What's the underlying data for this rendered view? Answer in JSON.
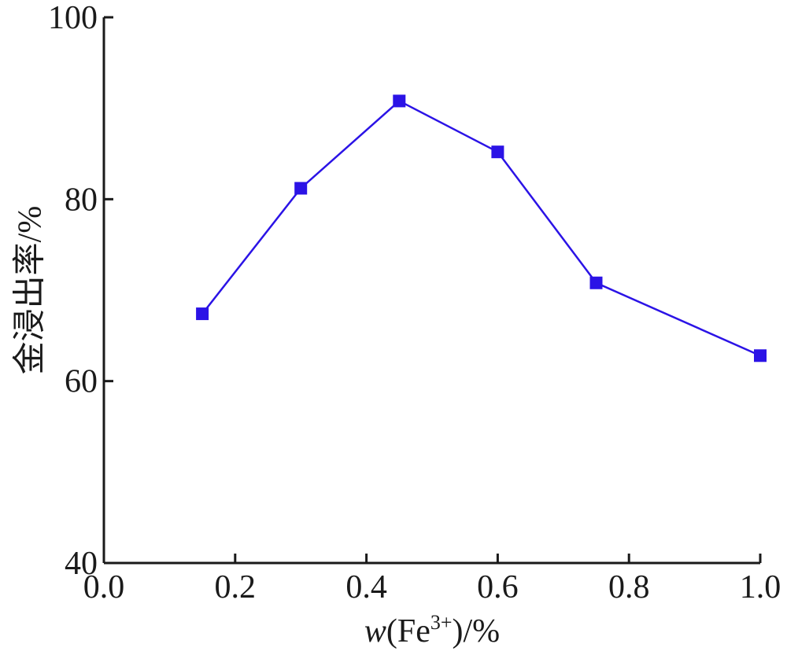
{
  "chart_data": {
    "type": "line",
    "xlabel_var": "w",
    "xlabel_rest": "(Fe",
    "xlabel_sup": "3+",
    "xlabel_end": ")/%",
    "ylabel": "金浸出率/%",
    "xlim": [
      0.0,
      1.0
    ],
    "ylim": [
      40,
      100
    ],
    "xticks": [
      0.0,
      0.2,
      0.4,
      0.6,
      0.8,
      1.0
    ],
    "xtick_labels": [
      "0.0",
      "0.2",
      "0.4",
      "0.6",
      "0.8",
      "1.0"
    ],
    "yticks": [
      40,
      60,
      80,
      100
    ],
    "ytick_labels": [
      "40",
      "60",
      "80",
      "100"
    ],
    "grid": false,
    "series": [
      {
        "color": "#2b13e6",
        "marker": "square",
        "x": [
          0.15,
          0.3,
          0.45,
          0.6,
          0.75,
          1.0
        ],
        "y": [
          67.4,
          81.2,
          90.8,
          85.2,
          70.8,
          62.8
        ]
      }
    ]
  }
}
